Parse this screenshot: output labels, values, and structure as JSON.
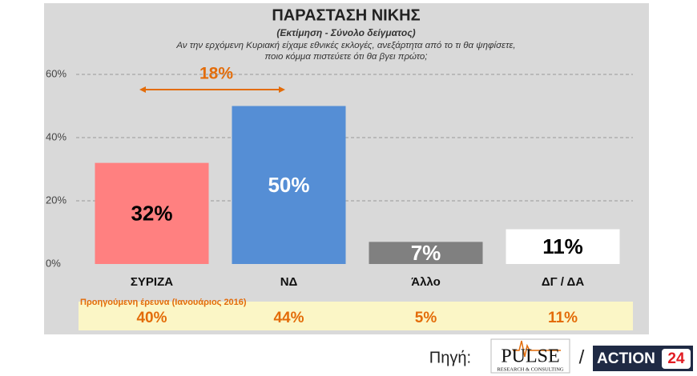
{
  "chart_data": {
    "type": "bar",
    "title": "ΠΑΡΑΣΤΑΣΗ  ΝΙΚΗΣ",
    "subtitle": "(Εκτίμηση - Σύνολο δείγματος)",
    "question": [
      "Αν την ερχόμενη Κυριακή είχαμε εθνικές εκλογές,  ανεξάρτητα από το τι θα ψηφίσετε,",
      "ποιο κόμμα πιστεύετε ότι θα βγει πρώτο;"
    ],
    "categories": [
      "ΣΥΡΙΖΑ",
      "ΝΔ",
      "Άλλο",
      "ΔΓ / ΔΑ"
    ],
    "values": [
      32,
      50,
      7,
      11
    ],
    "value_labels": [
      "32%",
      "50%",
      "7%",
      "11%"
    ],
    "colors": [
      "#ff8080",
      "#558ed5",
      "#808080",
      "#ffffff"
    ],
    "value_label_colors": [
      "#000000",
      "#ffffff",
      "#ffffff",
      "#000000"
    ],
    "ylim": [
      0,
      60
    ],
    "yticks": [
      {
        "value": 0,
        "label": "0%"
      },
      {
        "value": 20,
        "label": "20%"
      },
      {
        "value": 40,
        "label": "40%"
      },
      {
        "value": 60,
        "label": "60%"
      }
    ],
    "grid": true,
    "annotation": "18%",
    "previous": {
      "label": "Προηγούμενη έρευνα (Ιανουάριος 2016)",
      "values": [
        "40%",
        "44%",
        "5%",
        "11%"
      ]
    },
    "source": {
      "label": "Πηγή:",
      "logo1": "PULSE",
      "logo1_sub": "RESEARCH & CONSULTING",
      "separator": "/",
      "logo2": "ACTION",
      "logo2_num": "24"
    }
  }
}
